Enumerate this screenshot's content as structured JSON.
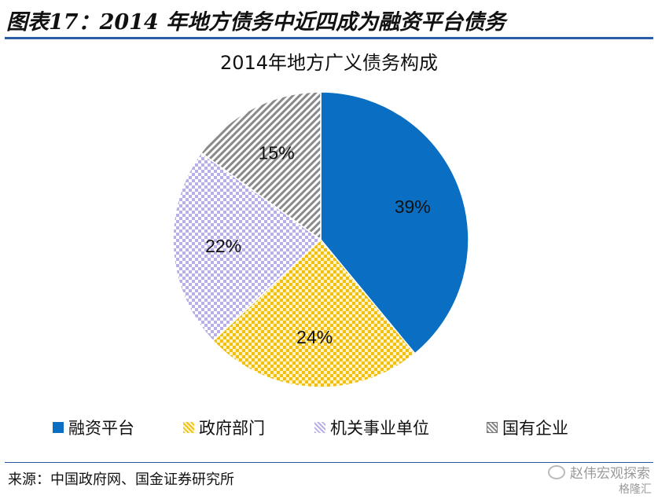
{
  "figure_title": "图表17：2014 年地方债务中近四成为融资平台债务",
  "source_text": "来源：中国政府网、国金证券研究所",
  "watermark": {
    "text": "赵伟宏观探索",
    "sub": "格隆汇",
    "icon": "wechat-icon"
  },
  "chart_data": {
    "type": "pie",
    "title": "2014年地方广义债务构成",
    "labels": [
      "融资平台",
      "政府部门",
      "机关事业单位",
      "国有企业"
    ],
    "values": [
      39,
      24,
      22,
      15
    ],
    "value_labels": [
      "39%",
      "24%",
      "22%",
      "15%"
    ],
    "colors": [
      "#0a6fc2",
      "#f2c318",
      "#b9afe8",
      "#8a8a8a"
    ],
    "fill_styles": [
      "solid",
      "checker-pattern",
      "checker-pattern",
      "diagonal-pattern"
    ],
    "start_angle": "12 o'clock",
    "direction": "clockwise",
    "legend_position": "bottom"
  }
}
